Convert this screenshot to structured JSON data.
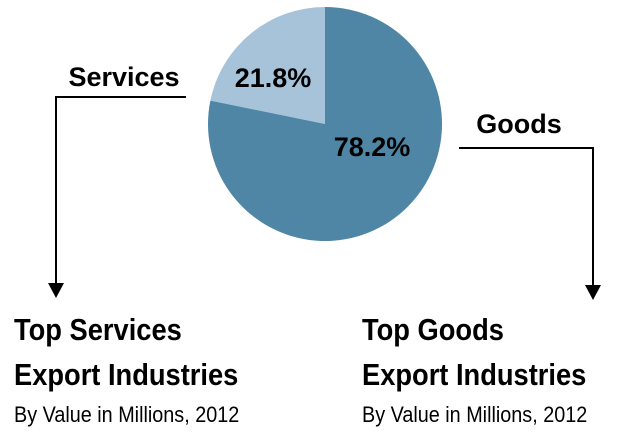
{
  "chart_data": {
    "type": "pie",
    "slices": [
      {
        "label": "Services",
        "value": 21.8,
        "value_label": "21.8%",
        "color": "#a6c3d9"
      },
      {
        "label": "Goods",
        "value": 78.2,
        "value_label": "78.2%",
        "color": "#4f86a5"
      }
    ]
  },
  "services_panel": {
    "title_line1": "Top Services",
    "title_line2": "Export Industries",
    "subtitle": "By Value in Millions, 2012"
  },
  "goods_panel": {
    "title_line1": "Top Goods",
    "title_line2": "Export Industries",
    "subtitle": "By Value in Millions, 2012"
  }
}
